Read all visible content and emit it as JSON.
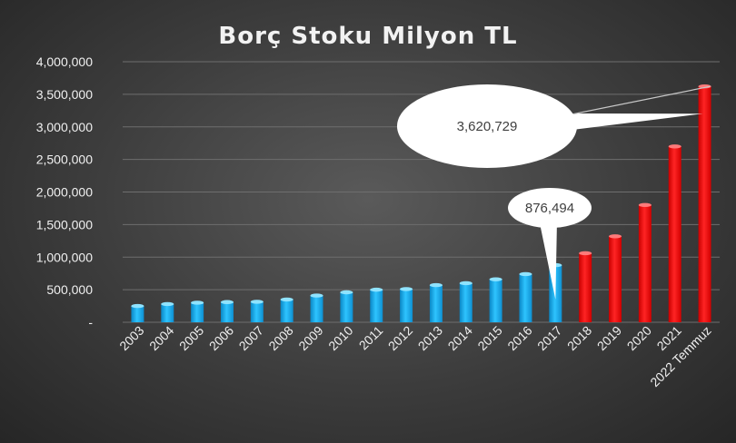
{
  "chart_data": {
    "type": "bar",
    "title": "Borç Stoku Milyon TL",
    "xlabel": "",
    "ylabel": "",
    "ylim": [
      0,
      4000000
    ],
    "yticks": [
      "-",
      "500,000",
      "1,000,000",
      "1,500,000",
      "2,000,000",
      "2,500,000",
      "3,000,000",
      "3,500,000",
      "4,000,000"
    ],
    "categories": [
      "2003",
      "2004",
      "2005",
      "2006",
      "2007",
      "2008",
      "2009",
      "2010",
      "2011",
      "2012",
      "2013",
      "2014",
      "2015",
      "2016",
      "2017",
      "2018",
      "2019",
      "2020",
      "2021",
      "2022 Temmuz"
    ],
    "values": [
      250000,
      280000,
      300000,
      310000,
      315000,
      350000,
      410000,
      460000,
      500000,
      510000,
      570000,
      600000,
      660000,
      740000,
      876494,
      1060000,
      1320000,
      1800000,
      2700000,
      3620729
    ],
    "bar_colors": [
      "#1fb8f0",
      "#1fb8f0",
      "#1fb8f0",
      "#1fb8f0",
      "#1fb8f0",
      "#1fb8f0",
      "#1fb8f0",
      "#1fb8f0",
      "#1fb8f0",
      "#1fb8f0",
      "#1fb8f0",
      "#1fb8f0",
      "#1fb8f0",
      "#1fb8f0",
      "#1fb8f0",
      "#ff1a1a",
      "#ff1a1a",
      "#ff1a1a",
      "#ff1a1a",
      "#ff1a1a"
    ],
    "grid": true,
    "legend": "none",
    "annotations": [
      {
        "text": "876,494",
        "category": "2017"
      },
      {
        "text": "3,620,729",
        "category": "2022 Temmuz"
      }
    ]
  }
}
